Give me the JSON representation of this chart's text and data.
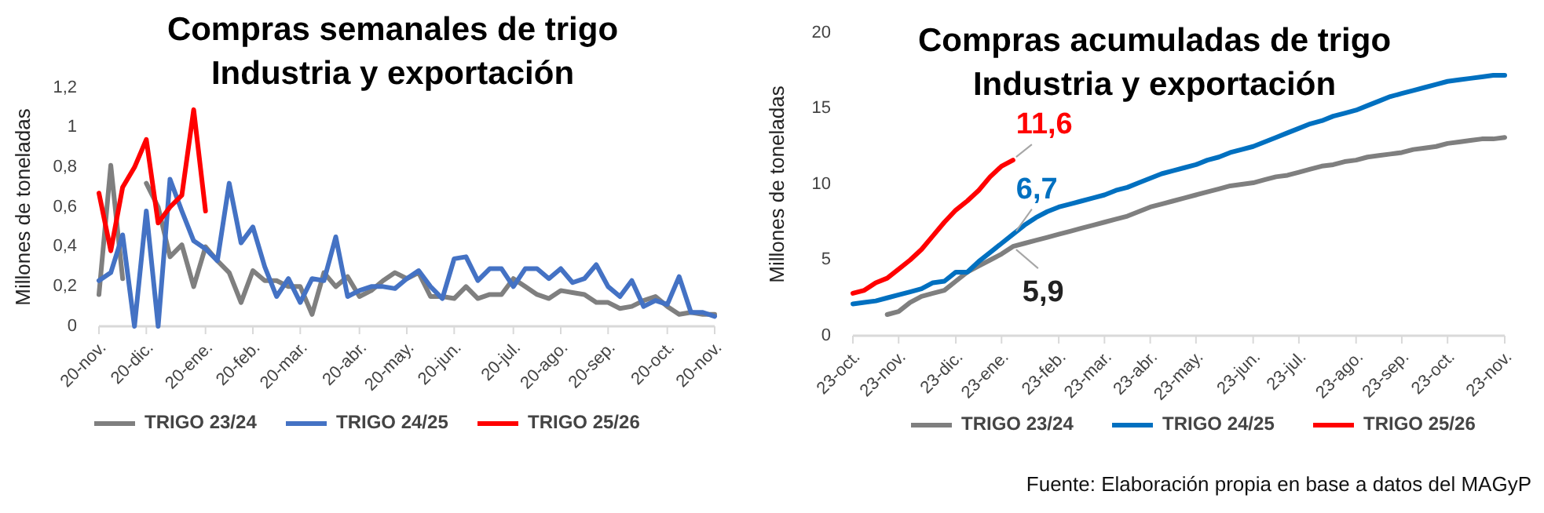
{
  "chart_data": [
    {
      "type": "line",
      "title": "Compras semanales de trigo\nIndustria y exportación",
      "ylabel": "Millones de toneladas",
      "categories": [
        "20-nov.",
        null,
        null,
        null,
        "20-dic.",
        null,
        null,
        null,
        null,
        "20-ene.",
        null,
        null,
        null,
        "20-feb.",
        null,
        null,
        null,
        "20-mar.",
        null,
        null,
        null,
        null,
        "20-abr.",
        null,
        null,
        null,
        "20-may.",
        null,
        null,
        null,
        "20-jun.",
        null,
        null,
        null,
        null,
        "20-jul.",
        null,
        null,
        null,
        "20-ago.",
        null,
        null,
        null,
        "20-sep.",
        null,
        null,
        null,
        null,
        "20-oct.",
        null,
        null,
        null,
        "20-nov."
      ],
      "ylim": [
        0,
        1.2
      ],
      "yticks": [
        0,
        {
          "value": 0.2,
          "label": "0,2"
        },
        {
          "value": 0.4,
          "label": "0,4"
        },
        {
          "value": 0.6,
          "label": "0,6"
        },
        {
          "value": 0.8,
          "label": "0,8"
        },
        1,
        {
          "value": 1.2,
          "label": "1,2"
        }
      ],
      "legend": "bottom",
      "series": [
        {
          "name": "TRIGO 23/24",
          "color": "#7f7f7f",
          "values": [
            0.16,
            0.81,
            0.24,
            null,
            0.72,
            0.6,
            0.35,
            0.41,
            0.2,
            0.4,
            0.33,
            0.27,
            0.12,
            0.28,
            0.23,
            0.23,
            0.2,
            0.2,
            0.06,
            0.27,
            0.2,
            0.25,
            0.15,
            0.18,
            0.23,
            0.27,
            0.24,
            0.27,
            0.15,
            0.15,
            0.14,
            0.2,
            0.14,
            0.16,
            0.16,
            0.24,
            0.2,
            0.16,
            0.14,
            0.18,
            0.17,
            0.16,
            0.12,
            0.12,
            0.09,
            0.1,
            0.13,
            0.15,
            0.1,
            0.06,
            0.07,
            0.06,
            0.06
          ]
        },
        {
          "name": "TRIGO 24/25",
          "color": "#4472c4",
          "values": [
            0.23,
            0.27,
            0.46,
            0.0,
            0.58,
            0.0,
            0.74,
            0.58,
            0.43,
            0.39,
            0.33,
            0.72,
            0.42,
            0.5,
            0.3,
            0.15,
            0.24,
            0.12,
            0.24,
            0.23,
            0.45,
            0.15,
            0.18,
            0.2,
            0.2,
            0.19,
            0.24,
            0.28,
            0.2,
            0.14,
            0.34,
            0.35,
            0.23,
            0.29,
            0.29,
            0.2,
            0.29,
            0.29,
            0.24,
            0.29,
            0.22,
            0.24,
            0.31,
            0.2,
            0.15,
            0.23,
            0.1,
            0.13,
            0.11,
            0.25,
            0.07,
            0.07,
            0.05
          ]
        },
        {
          "name": "TRIGO 25/26",
          "color": "#ff0000",
          "values": [
            0.67,
            0.38,
            0.7,
            0.8,
            0.94,
            0.52,
            0.6,
            0.66,
            1.09,
            0.58,
            null,
            null,
            null,
            null,
            null,
            null,
            null,
            null,
            null,
            null,
            null,
            null,
            null,
            null,
            null,
            null,
            null,
            null,
            null,
            null,
            null,
            null,
            null,
            null,
            null,
            null,
            null,
            null,
            null,
            null,
            null,
            null,
            null,
            null,
            null,
            null,
            null,
            null,
            null,
            null,
            null,
            null,
            null
          ]
        }
      ]
    },
    {
      "type": "line",
      "title": "Compras acumuladas de trigo\nIndustria y exportación",
      "ylabel": "Millones de toneladas",
      "categories": [
        "23-oct.",
        null,
        null,
        null,
        "23-nov.",
        null,
        null,
        null,
        null,
        "23-dic.",
        null,
        null,
        null,
        "23-ene.",
        null,
        null,
        null,
        null,
        "23-feb.",
        null,
        null,
        null,
        "23-mar.",
        null,
        null,
        null,
        "23-abr.",
        null,
        null,
        null,
        "23-may.",
        null,
        null,
        null,
        null,
        "23-jun.",
        null,
        null,
        null,
        "23-jul.",
        null,
        null,
        null,
        null,
        "23-ago.",
        null,
        null,
        null,
        "23-sep.",
        null,
        null,
        null,
        "23-oct.",
        null,
        null,
        null,
        null,
        "23-nov."
      ],
      "ylim": [
        0,
        20
      ],
      "yticks": [
        0,
        5,
        10,
        15,
        20
      ],
      "legend": "bottom",
      "series": [
        {
          "name": "TRIGO 23/24",
          "color": "#7f7f7f",
          "values": [
            null,
            null,
            null,
            1.4,
            1.6,
            2.2,
            2.6,
            2.8,
            3.0,
            3.6,
            4.2,
            4.6,
            5.0,
            5.4,
            5.9,
            6.1,
            6.3,
            6.5,
            6.7,
            6.9,
            7.1,
            7.3,
            7.5,
            7.7,
            7.9,
            8.2,
            8.5,
            8.7,
            8.9,
            9.1,
            9.3,
            9.5,
            9.7,
            9.9,
            10.0,
            10.1,
            10.3,
            10.5,
            10.6,
            10.8,
            11.0,
            11.2,
            11.3,
            11.5,
            11.6,
            11.8,
            11.9,
            12.0,
            12.1,
            12.3,
            12.4,
            12.5,
            12.7,
            12.8,
            12.9,
            13.0,
            13.0,
            13.1
          ],
          "value_labels": [
            null,
            null,
            null,
            null,
            null,
            null,
            null,
            null,
            null,
            null,
            null,
            null,
            null,
            null,
            "5,9",
            null,
            null,
            null,
            null,
            null,
            null,
            null,
            null,
            null,
            null,
            null,
            null,
            null,
            null,
            null,
            null,
            null,
            null,
            null,
            null,
            null,
            null,
            null,
            null,
            null,
            null,
            null,
            null,
            null,
            null,
            null,
            null,
            null,
            null,
            null,
            null,
            null,
            null,
            null,
            null,
            null,
            null,
            null
          ]
        },
        {
          "name": "TRIGO 24/25",
          "color": "#0070c0",
          "values": [
            2.1,
            2.2,
            2.3,
            2.5,
            2.7,
            2.9,
            3.1,
            3.5,
            3.6,
            4.2,
            4.2,
            4.9,
            5.5,
            6.1,
            6.7,
            7.3,
            7.8,
            8.2,
            8.5,
            8.7,
            8.9,
            9.1,
            9.3,
            9.6,
            9.8,
            10.1,
            10.4,
            10.7,
            10.9,
            11.1,
            11.3,
            11.6,
            11.8,
            12.1,
            12.3,
            12.5,
            12.8,
            13.1,
            13.4,
            13.7,
            14.0,
            14.2,
            14.5,
            14.7,
            14.9,
            15.2,
            15.5,
            15.8,
            16.0,
            16.2,
            16.4,
            16.6,
            16.8,
            16.9,
            17.0,
            17.1,
            17.2,
            17.2
          ],
          "value_labels": [
            null,
            null,
            null,
            null,
            null,
            null,
            null,
            null,
            null,
            null,
            null,
            null,
            null,
            null,
            "6,7",
            null,
            null,
            null,
            null,
            null,
            null,
            null,
            null,
            null,
            null,
            null,
            null,
            null,
            null,
            null,
            null,
            null,
            null,
            null,
            null,
            null,
            null,
            null,
            null,
            null,
            null,
            null,
            null,
            null,
            null,
            null,
            null,
            null,
            null,
            null,
            null,
            null,
            null,
            null,
            null,
            null,
            null,
            null
          ]
        },
        {
          "name": "TRIGO 25/26",
          "color": "#ff0000",
          "values": [
            2.8,
            3.0,
            3.5,
            3.8,
            4.4,
            5.0,
            5.7,
            6.6,
            7.5,
            8.3,
            8.9,
            9.6,
            10.5,
            11.2,
            11.6,
            null,
            null,
            null,
            null,
            null,
            null,
            null,
            null,
            null,
            null,
            null,
            null,
            null,
            null,
            null,
            null,
            null,
            null,
            null,
            null,
            null,
            null,
            null,
            null,
            null,
            null,
            null,
            null,
            null,
            null,
            null,
            null,
            null,
            null,
            null,
            null,
            null,
            null,
            null,
            null,
            null,
            null,
            null
          ],
          "value_labels": [
            null,
            null,
            null,
            null,
            null,
            null,
            null,
            null,
            null,
            null,
            null,
            null,
            null,
            null,
            "11,6",
            null,
            null,
            null,
            null,
            null,
            null,
            null,
            null,
            null,
            null,
            null,
            null,
            null,
            null,
            null,
            null,
            null,
            null,
            null,
            null,
            null,
            null,
            null,
            null,
            null,
            null,
            null,
            null,
            null,
            null,
            null,
            null,
            null,
            null,
            null,
            null,
            null,
            null,
            null,
            null,
            null,
            null,
            null
          ]
        }
      ],
      "annotations": [
        "Fuente: Elaboración propia en base a datos del MAGyP"
      ]
    }
  ]
}
